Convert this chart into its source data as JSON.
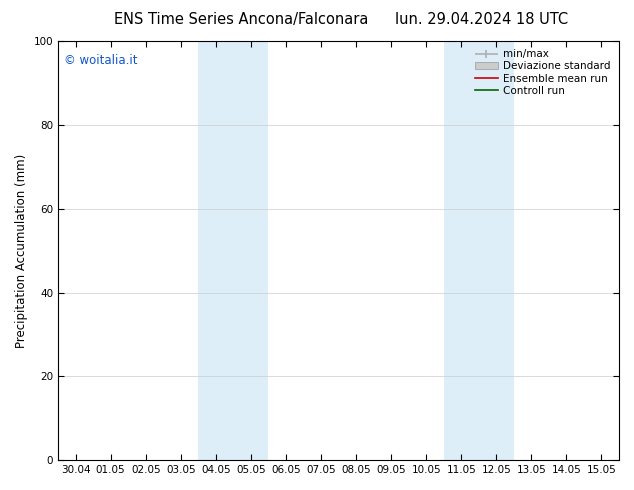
{
  "title_left": "ENS Time Series Ancona/Falconara",
  "title_right": "lun. 29.04.2024 18 UTC",
  "ylabel": "Precipitation Accumulation (mm)",
  "ylim": [
    0,
    100
  ],
  "yticks": [
    0,
    20,
    40,
    60,
    80,
    100
  ],
  "x_labels": [
    "30.04",
    "01.05",
    "02.05",
    "03.05",
    "04.05",
    "05.05",
    "06.05",
    "07.05",
    "08.05",
    "09.05",
    "10.05",
    "11.05",
    "12.05",
    "13.05",
    "14.05",
    "15.05"
  ],
  "shade_bands": [
    {
      "xstart": 4,
      "xend": 6,
      "color": "#ddeef8",
      "alpha": 1.0
    },
    {
      "xstart": 11,
      "xend": 13,
      "color": "#ddeef8",
      "alpha": 1.0
    }
  ],
  "legend_items": [
    {
      "label": "min/max",
      "color": "#b0b0b0",
      "lw": 1.2
    },
    {
      "label": "Deviazione standard",
      "color": "#cccccc",
      "lw": 5
    },
    {
      "label": "Ensemble mean run",
      "color": "#cc0000",
      "lw": 1.2
    },
    {
      "label": "Controll run",
      "color": "#006600",
      "lw": 1.2
    }
  ],
  "watermark": "© woitalia.it",
  "watermark_color": "#1155cc",
  "background_color": "#ffffff",
  "plot_bg_color": "#ffffff",
  "title_fontsize": 10.5,
  "tick_fontsize": 7.5,
  "ylabel_fontsize": 8.5,
  "legend_fontsize": 7.5
}
